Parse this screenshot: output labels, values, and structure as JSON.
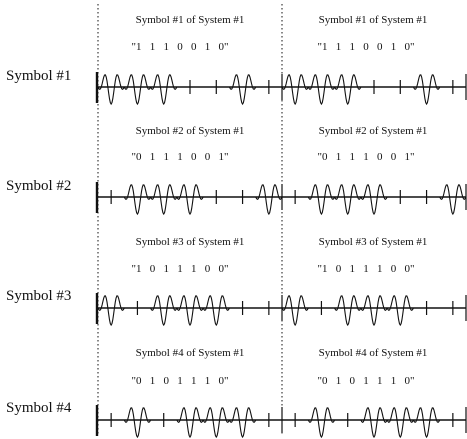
{
  "rows": [
    {
      "label": "Symbol #1",
      "panels": [
        {
          "title": "Symbol #1 of System #1",
          "bits": "\"1   1   1   0   0   1   0\"",
          "bit_values": [
            1,
            1,
            1,
            0,
            0,
            1,
            0
          ]
        },
        {
          "title": "Symbol #1 of System #1",
          "bits": "\"1   1   1   0   0   1   0\"",
          "bit_values": [
            1,
            1,
            1,
            0,
            0,
            1,
            0
          ]
        }
      ]
    },
    {
      "label": "Symbol #2",
      "panels": [
        {
          "title": "Symbol #2 of System #1",
          "bits": "\"0   1   1   1   0   0   1\"",
          "bit_values": [
            0,
            1,
            1,
            1,
            0,
            0,
            1
          ]
        },
        {
          "title": "Symbol #2 of System #1",
          "bits": "\"0   1   1   1   0   0   1\"",
          "bit_values": [
            0,
            1,
            1,
            1,
            0,
            0,
            1
          ]
        }
      ]
    },
    {
      "label": "Symbol #3",
      "panels": [
        {
          "title": "Symbol #3 of System #1",
          "bits": "\"1   0   1   1   1   0   0\"",
          "bit_values": [
            1,
            0,
            1,
            1,
            1,
            0,
            0
          ]
        },
        {
          "title": "Symbol #3 of System #1",
          "bits": "\"1   0   1   1   1   0   0\"",
          "bit_values": [
            1,
            0,
            1,
            1,
            1,
            0,
            0
          ]
        }
      ]
    },
    {
      "label": "Symbol #4",
      "panels": [
        {
          "title": "Symbol #4 of System #1",
          "bits": "\"0   1   0   1   1   1   0\"",
          "bit_values": [
            0,
            1,
            0,
            1,
            1,
            1,
            0
          ]
        },
        {
          "title": "Symbol #4 of System #1",
          "bits": "\"0   1   0   1   1   1   0\"",
          "bit_values": [
            0,
            1,
            0,
            1,
            1,
            1,
            0
          ]
        }
      ]
    }
  ]
}
